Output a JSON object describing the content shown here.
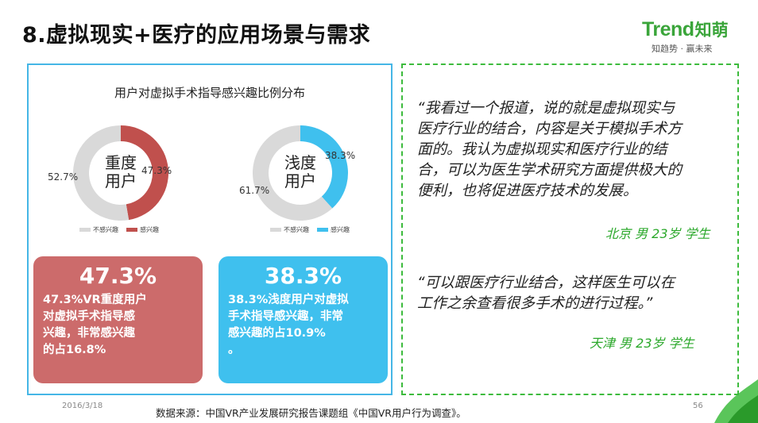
{
  "slide": {
    "title": "8.虚拟现实+医疗的应用场景与需求",
    "date": "2016/3/18",
    "page_number": "56",
    "source": "数据来源：中国VR产业发展研究报告课题组《中国VR用户行为调查》。"
  },
  "logo": {
    "brand": "Trend",
    "brand_cn": "知萌",
    "slogan": "知趋势 · 赢未来"
  },
  "colors": {
    "red": "#c0504d",
    "blue": "#3fc0ee",
    "gray": "#d9d9d9",
    "green": "#3dbb3d"
  },
  "chart_data": [
    {
      "type": "pie",
      "title": "用户对虚拟手术指导感兴趣比例分布",
      "center_label": "重度\n用户",
      "labels": [
        "不感兴趣",
        "感兴趣"
      ],
      "values": [
        52.7,
        47.3
      ],
      "value_labels": [
        "52.7%",
        "47.3%"
      ],
      "colors": [
        "#d9d9d9",
        "#c0504d"
      ],
      "legend": "bottom"
    },
    {
      "type": "pie",
      "center_label": "浅度\n用户",
      "labels": [
        "不感兴趣",
        "感兴趣"
      ],
      "values": [
        61.7,
        38.3
      ],
      "value_labels": [
        "61.7%",
        "38.3%"
      ],
      "colors": [
        "#d9d9d9",
        "#3fc0ee"
      ],
      "legend": "bottom"
    }
  ],
  "donut1": {
    "center_line1": "重度",
    "center_line2": "用户",
    "label_gray": "52.7%",
    "label_color": "47.3%",
    "legend_gray": "不感兴趣",
    "legend_color": "感兴趣"
  },
  "donut2": {
    "center_line1": "浅度",
    "center_line2": "用户",
    "label_gray": "61.7%",
    "label_color": "38.3%",
    "legend_gray": "不感兴趣",
    "legend_color": "感兴趣"
  },
  "cards": {
    "heavy": {
      "big": "47.3%",
      "lines": [
        "47.3%VR重度用户",
        "对虚拟手术指导感",
        "兴趣，非常感兴趣",
        "的占16.8%"
      ]
    },
    "light": {
      "big": "38.3%",
      "lines": [
        "38.3%浅度用户对虚拟",
        "手术指导感兴趣，非常",
        "感兴趣的占10.9%",
        "。"
      ]
    }
  },
  "quotes": [
    {
      "lines": [
        "“我看过一个报道，说的就是虚拟现实与",
        "医疗行业的结合，内容是关于模拟手术方",
        "面的。我认为虚拟现实和医疗行业的结",
        "合，可以为医生学术研究方面提供极大的",
        "便利，也将促进医疗技术的发展。"
      ],
      "attribution": "北京 男 23岁 学生"
    },
    {
      "lines": [
        "“可以跟医疗行业结合，这样医生可以在",
        "工作之余查看很多手术的进行过程。”"
      ],
      "attribution": "天津 男 23岁 学生"
    }
  ]
}
